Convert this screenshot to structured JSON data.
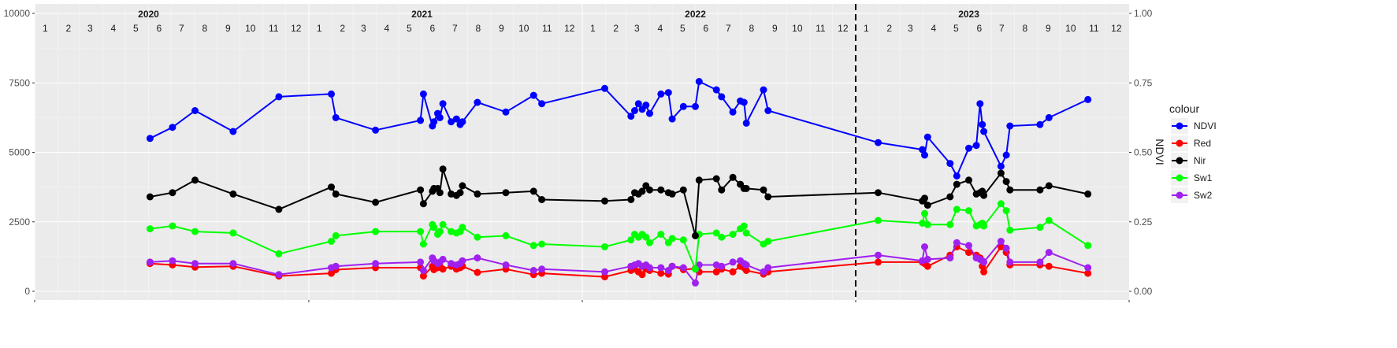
{
  "chart_data": {
    "type": "line",
    "ylabel_right": "NDVI",
    "ylim_left": [
      0,
      10000
    ],
    "ylim_right": [
      0,
      1
    ],
    "yticks_left": [
      "0",
      "2500",
      "5000",
      "7500",
      "10000"
    ],
    "yticks_right": [
      "0.00",
      "0.25",
      "0.50",
      "0.75",
      "1.00"
    ],
    "years": [
      {
        "label": "2020",
        "at": "2020-06-01"
      },
      {
        "label": "2021",
        "at": "2021-06-01"
      },
      {
        "label": "2022",
        "at": "2022-06-01"
      },
      {
        "label": "2023",
        "at": "2023-06-01"
      }
    ],
    "x_start": "2020-01-01",
    "x_end": "2024-01-01",
    "vline_date": "2023-01-01",
    "legend_title": "colour",
    "grid": true,
    "legend_position": "right",
    "series": [
      {
        "name": "NDVI",
        "color": "#0000ff",
        "axis": "right",
        "x": [
          "2020-06-03",
          "2020-07-03",
          "2020-08-02",
          "2020-09-22",
          "2020-11-22",
          "2021-01-31",
          "2021-02-06",
          "2021-03-31",
          "2021-05-30",
          "2021-06-03",
          "2021-06-15",
          "2021-06-17",
          "2021-06-22",
          "2021-06-25",
          "2021-06-29",
          "2021-07-10",
          "2021-07-17",
          "2021-07-22",
          "2021-07-25",
          "2021-08-14",
          "2021-09-21",
          "2021-10-28",
          "2021-11-08",
          "2022-01-31",
          "2022-03-07",
          "2022-03-12",
          "2022-03-17",
          "2022-03-22",
          "2022-03-27",
          "2022-04-01",
          "2022-04-16",
          "2022-04-26",
          "2022-05-01",
          "2022-05-16",
          "2022-06-01",
          "2022-06-06",
          "2022-06-29",
          "2022-07-06",
          "2022-07-21",
          "2022-07-31",
          "2022-08-05",
          "2022-08-08",
          "2022-08-31",
          "2022-09-06",
          "2023-01-31",
          "2023-03-31",
          "2023-04-03",
          "2023-04-07",
          "2023-05-07",
          "2023-05-16",
          "2023-06-01",
          "2023-06-11",
          "2023-06-16",
          "2023-06-19",
          "2023-06-21",
          "2023-07-14",
          "2023-07-21",
          "2023-07-26",
          "2023-09-04",
          "2023-09-16",
          "2023-11-07"
        ],
        "values": [
          0.55,
          0.59,
          0.65,
          0.575,
          0.7,
          0.71,
          0.625,
          0.58,
          0.615,
          0.71,
          0.595,
          0.61,
          0.64,
          0.625,
          0.675,
          0.61,
          0.62,
          0.6,
          0.61,
          0.68,
          0.645,
          0.705,
          0.675,
          0.73,
          0.63,
          0.65,
          0.675,
          0.655,
          0.67,
          0.64,
          0.71,
          0.715,
          0.62,
          0.665,
          0.665,
          0.755,
          0.725,
          0.7,
          0.645,
          0.685,
          0.68,
          0.605,
          0.725,
          0.65,
          0.535,
          0.51,
          0.49,
          0.555,
          0.46,
          0.415,
          0.515,
          0.525,
          0.675,
          0.6,
          0.575,
          0.45,
          0.49,
          0.595,
          0.6,
          0.625,
          0.69
        ]
      },
      {
        "name": "Red",
        "color": "#ff0000",
        "axis": "left",
        "x": [
          "2020-06-03",
          "2020-07-03",
          "2020-08-02",
          "2020-09-22",
          "2020-11-22",
          "2021-01-31",
          "2021-02-06",
          "2021-03-31",
          "2021-05-30",
          "2021-06-03",
          "2021-06-15",
          "2021-06-17",
          "2021-06-22",
          "2021-06-25",
          "2021-06-29",
          "2021-07-10",
          "2021-07-17",
          "2021-07-22",
          "2021-07-25",
          "2021-08-14",
          "2021-09-21",
          "2021-10-28",
          "2021-11-08",
          "2022-01-31",
          "2022-03-07",
          "2022-03-12",
          "2022-03-17",
          "2022-03-22",
          "2022-03-27",
          "2022-04-01",
          "2022-04-16",
          "2022-04-26",
          "2022-05-01",
          "2022-05-16",
          "2022-06-01",
          "2022-06-06",
          "2022-06-29",
          "2022-07-06",
          "2022-07-21",
          "2022-07-31",
          "2022-08-05",
          "2022-08-08",
          "2022-08-31",
          "2022-09-06",
          "2023-01-31",
          "2023-03-31",
          "2023-04-03",
          "2023-04-07",
          "2023-05-07",
          "2023-05-16",
          "2023-06-01",
          "2023-06-11",
          "2023-06-16",
          "2023-06-19",
          "2023-06-21",
          "2023-07-14",
          "2023-07-21",
          "2023-07-26",
          "2023-09-04",
          "2023-09-16",
          "2023-11-07"
        ],
        "values": [
          1000,
          950,
          870,
          900,
          550,
          650,
          780,
          850,
          850,
          550,
          900,
          780,
          850,
          900,
          800,
          900,
          800,
          850,
          900,
          680,
          800,
          600,
          650,
          520,
          750,
          800,
          700,
          600,
          800,
          750,
          650,
          620,
          900,
          780,
          820,
          700,
          700,
          800,
          700,
          900,
          850,
          750,
          620,
          700,
          1050,
          1050,
          1000,
          900,
          1300,
          1600,
          1400,
          1300,
          1200,
          900,
          700,
          1600,
          1400,
          950,
          950,
          900,
          650
        ]
      },
      {
        "name": "Nir",
        "color": "#000000",
        "axis": "left",
        "x": [
          "2020-06-03",
          "2020-07-03",
          "2020-08-02",
          "2020-09-22",
          "2020-11-22",
          "2021-01-31",
          "2021-02-06",
          "2021-03-31",
          "2021-05-30",
          "2021-06-03",
          "2021-06-15",
          "2021-06-17",
          "2021-06-22",
          "2021-06-25",
          "2021-06-29",
          "2021-07-10",
          "2021-07-17",
          "2021-07-22",
          "2021-07-25",
          "2021-08-14",
          "2021-09-21",
          "2021-10-28",
          "2021-11-08",
          "2022-01-31",
          "2022-03-07",
          "2022-03-12",
          "2022-03-17",
          "2022-03-22",
          "2022-03-27",
          "2022-04-01",
          "2022-04-16",
          "2022-04-26",
          "2022-05-01",
          "2022-05-16",
          "2022-06-01",
          "2022-06-06",
          "2022-06-29",
          "2022-07-06",
          "2022-07-21",
          "2022-07-31",
          "2022-08-05",
          "2022-08-08",
          "2022-08-31",
          "2022-09-06",
          "2023-01-31",
          "2023-03-31",
          "2023-04-03",
          "2023-04-07",
          "2023-05-07",
          "2023-05-16",
          "2023-06-01",
          "2023-06-11",
          "2023-06-16",
          "2023-06-19",
          "2023-06-21",
          "2023-07-14",
          "2023-07-21",
          "2023-07-26",
          "2023-09-04",
          "2023-09-16",
          "2023-11-07"
        ],
        "values": [
          3400,
          3550,
          4000,
          3500,
          2950,
          3750,
          3500,
          3200,
          3650,
          3150,
          3600,
          3700,
          3700,
          3550,
          4400,
          3500,
          3450,
          3550,
          3800,
          3500,
          3550,
          3600,
          3300,
          3250,
          3300,
          3550,
          3500,
          3600,
          3800,
          3650,
          3650,
          3550,
          3500,
          3650,
          2000,
          4000,
          4050,
          3650,
          4100,
          3850,
          3700,
          3700,
          3650,
          3400,
          3550,
          3250,
          3350,
          3100,
          3400,
          3850,
          4000,
          3500,
          3550,
          3600,
          3450,
          4250,
          3950,
          3650,
          3650,
          3800,
          3500
        ]
      },
      {
        "name": "Sw1",
        "color": "#00ff00",
        "axis": "left",
        "x": [
          "2020-06-03",
          "2020-07-03",
          "2020-08-02",
          "2020-09-22",
          "2020-11-22",
          "2021-01-31",
          "2021-02-06",
          "2021-03-31",
          "2021-05-30",
          "2021-06-03",
          "2021-06-15",
          "2021-06-17",
          "2021-06-22",
          "2021-06-25",
          "2021-06-29",
          "2021-07-10",
          "2021-07-17",
          "2021-07-22",
          "2021-07-25",
          "2021-08-14",
          "2021-09-21",
          "2021-10-28",
          "2021-11-08",
          "2022-01-31",
          "2022-03-07",
          "2022-03-12",
          "2022-03-17",
          "2022-03-22",
          "2022-03-27",
          "2022-04-01",
          "2022-04-16",
          "2022-04-26",
          "2022-05-01",
          "2022-05-16",
          "2022-06-01",
          "2022-06-06",
          "2022-06-29",
          "2022-07-06",
          "2022-07-21",
          "2022-07-31",
          "2022-08-05",
          "2022-08-08",
          "2022-08-31",
          "2022-09-06",
          "2023-01-31",
          "2023-03-31",
          "2023-04-03",
          "2023-04-07",
          "2023-05-07",
          "2023-05-16",
          "2023-06-01",
          "2023-06-11",
          "2023-06-16",
          "2023-06-19",
          "2023-06-21",
          "2023-07-14",
          "2023-07-21",
          "2023-07-26",
          "2023-09-04",
          "2023-09-16",
          "2023-11-07"
        ],
        "values": [
          2250,
          2350,
          2150,
          2100,
          1350,
          1800,
          2000,
          2150,
          2150,
          1700,
          2400,
          2300,
          2050,
          2150,
          2400,
          2150,
          2100,
          2150,
          2300,
          1950,
          2000,
          1650,
          1700,
          1600,
          1850,
          2050,
          1950,
          2050,
          1950,
          1750,
          2050,
          1750,
          1900,
          1850,
          800,
          2050,
          2100,
          1950,
          2050,
          2250,
          2350,
          2100,
          1700,
          1800,
          2550,
          2450,
          2800,
          2400,
          2400,
          2950,
          2900,
          2350,
          2400,
          2450,
          2350,
          3150,
          2900,
          2200,
          2300,
          2550,
          1650
        ]
      },
      {
        "name": "Sw2",
        "color": "#a020f0",
        "axis": "left",
        "x": [
          "2020-06-03",
          "2020-07-03",
          "2020-08-02",
          "2020-09-22",
          "2020-11-22",
          "2021-01-31",
          "2021-02-06",
          "2021-03-31",
          "2021-05-30",
          "2021-06-03",
          "2021-06-15",
          "2021-06-17",
          "2021-06-22",
          "2021-06-25",
          "2021-06-29",
          "2021-07-10",
          "2021-07-17",
          "2021-07-22",
          "2021-07-25",
          "2021-08-14",
          "2021-09-21",
          "2021-10-28",
          "2021-11-08",
          "2022-01-31",
          "2022-03-07",
          "2022-03-12",
          "2022-03-17",
          "2022-03-22",
          "2022-03-27",
          "2022-04-01",
          "2022-04-16",
          "2022-04-26",
          "2022-05-01",
          "2022-05-16",
          "2022-06-01",
          "2022-06-06",
          "2022-06-29",
          "2022-07-06",
          "2022-07-21",
          "2022-07-31",
          "2022-08-05",
          "2022-08-08",
          "2022-08-31",
          "2022-09-06",
          "2023-01-31",
          "2023-03-31",
          "2023-04-03",
          "2023-04-07",
          "2023-05-07",
          "2023-05-16",
          "2023-06-01",
          "2023-06-11",
          "2023-06-16",
          "2023-06-19",
          "2023-06-21",
          "2023-07-14",
          "2023-07-21",
          "2023-07-26",
          "2023-09-04",
          "2023-09-16",
          "2023-11-07"
        ],
        "values": [
          1050,
          1100,
          1000,
          1000,
          600,
          850,
          900,
          1000,
          1050,
          750,
          1200,
          1100,
          1000,
          1050,
          1150,
          1000,
          950,
          1000,
          1100,
          1200,
          950,
          750,
          800,
          700,
          900,
          950,
          1000,
          900,
          950,
          850,
          850,
          750,
          900,
          850,
          300,
          950,
          950,
          900,
          1050,
          1100,
          1000,
          950,
          700,
          850,
          1300,
          1100,
          1600,
          1150,
          1200,
          1750,
          1650,
          1200,
          1150,
          1100,
          1050,
          1800,
          1550,
          1050,
          1050,
          1400,
          850
        ]
      }
    ]
  }
}
